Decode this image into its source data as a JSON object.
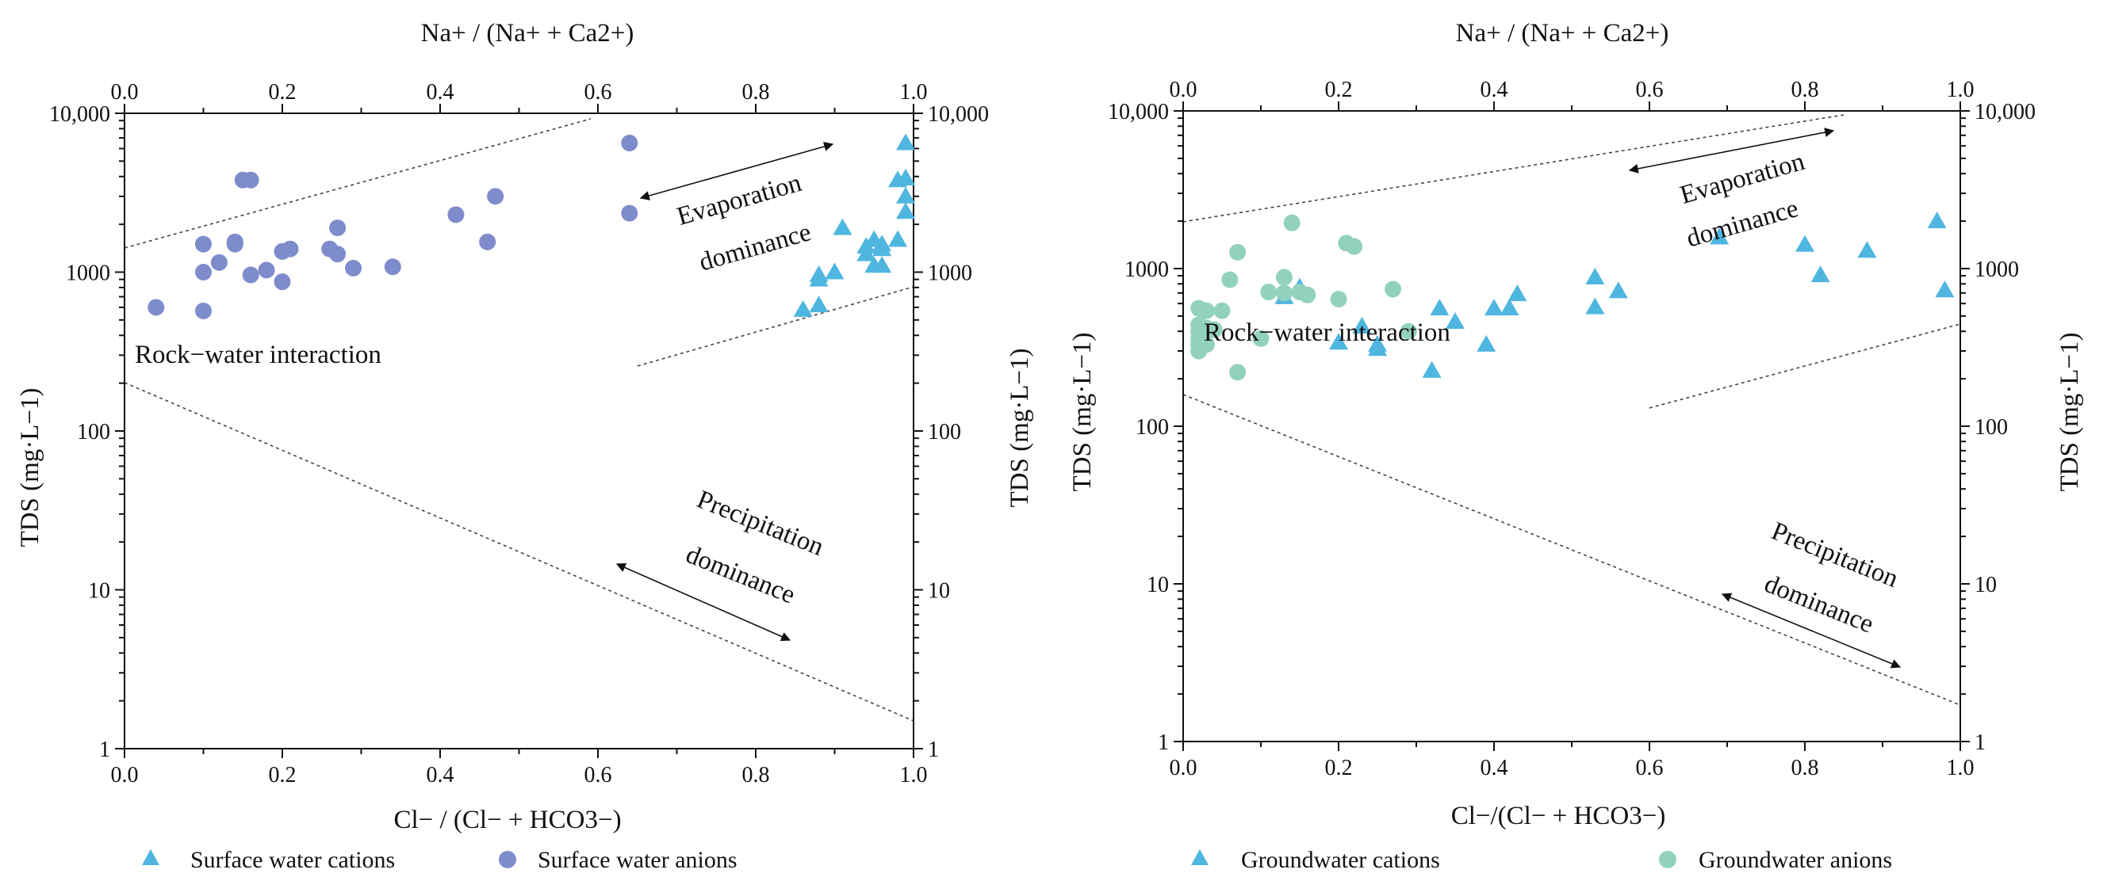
{
  "chart_data": [
    {
      "type": "scatter",
      "title": "",
      "top_axis": {
        "label": "Na+ / (Na+ + Ca2+)",
        "range": [
          0,
          1
        ],
        "ticks": [
          "0.0",
          "0.2",
          "0.4",
          "0.6",
          "0.8",
          "1.0"
        ]
      },
      "bottom_axis": {
        "label": "Cl− / (Cl− + HCO3−)",
        "range": [
          0,
          1
        ],
        "ticks": [
          "0.0",
          "0.2",
          "0.4",
          "0.6",
          "0.8",
          "1.0"
        ]
      },
      "left_axis": {
        "label": "TDS (mg·L−1)",
        "scale": "log",
        "range": [
          1,
          10000
        ],
        "ticks": [
          "1",
          "10",
          "100",
          "1000",
          "10,000"
        ]
      },
      "right_axis": {
        "label": "TDS (mg·L−1)",
        "scale": "log",
        "range": [
          1,
          10000
        ],
        "ticks": [
          "1",
          "10",
          "100",
          "1000",
          "10,000"
        ]
      },
      "annotations": {
        "evap_line1": "Evaporation",
        "evap_line2": "dominance",
        "rock": "Rock−water interaction",
        "precip_line1": "Precipitation",
        "precip_line2": "dominance"
      },
      "legend": {
        "position": "bottom",
        "entries": [
          {
            "label": "Surface water cations",
            "marker": "triangle",
            "color": "#4fb6e0"
          },
          {
            "label": "Surface water anions",
            "marker": "circle",
            "color": "#7f8ccc"
          }
        ]
      },
      "series": [
        {
          "name": "Surface water cations",
          "marker": "triangle",
          "color": "#4fb6e0",
          "axis": "top",
          "points": [
            [
              0.86,
              580
            ],
            [
              0.88,
              620
            ],
            [
              0.88,
              900
            ],
            [
              0.88,
              960
            ],
            [
              0.9,
              1000
            ],
            [
              0.91,
              1900
            ],
            [
              0.94,
              1300
            ],
            [
              0.94,
              1450
            ],
            [
              0.95,
              1100
            ],
            [
              0.95,
              1600
            ],
            [
              0.96,
              1100
            ],
            [
              0.96,
              1400
            ],
            [
              0.96,
              1500
            ],
            [
              0.98,
              1600
            ],
            [
              0.98,
              3800
            ],
            [
              0.99,
              2400
            ],
            [
              0.99,
              3000
            ],
            [
              0.99,
              3900
            ],
            [
              0.99,
              6500
            ]
          ]
        },
        {
          "name": "Surface water anions",
          "marker": "circle",
          "color": "#7f8ccc",
          "axis": "bottom",
          "points": [
            [
              0.04,
              600
            ],
            [
              0.1,
              570
            ],
            [
              0.1,
              1000
            ],
            [
              0.1,
              1500
            ],
            [
              0.12,
              1150
            ],
            [
              0.14,
              1500
            ],
            [
              0.14,
              1550
            ],
            [
              0.15,
              3800
            ],
            [
              0.16,
              3800
            ],
            [
              0.16,
              960
            ],
            [
              0.18,
              1030
            ],
            [
              0.2,
              870
            ],
            [
              0.2,
              1350
            ],
            [
              0.21,
              1400
            ],
            [
              0.26,
              1400
            ],
            [
              0.27,
              1300
            ],
            [
              0.27,
              1900
            ],
            [
              0.29,
              1060
            ],
            [
              0.34,
              1080
            ],
            [
              0.42,
              2300
            ],
            [
              0.46,
              1550
            ],
            [
              0.47,
              3000
            ],
            [
              0.64,
              2350
            ],
            [
              0.64,
              6500
            ]
          ]
        }
      ]
    },
    {
      "type": "scatter",
      "title": "",
      "top_axis": {
        "label": "Na+ / (Na+ + Ca2+)",
        "range": [
          0,
          1
        ],
        "ticks": [
          "0.0",
          "0.2",
          "0.4",
          "0.6",
          "0.8",
          "1.0"
        ]
      },
      "bottom_axis": {
        "label": "Cl−/(Cl− + HCO3−)",
        "range": [
          0,
          1
        ],
        "ticks": [
          "0.0",
          "0.2",
          "0.4",
          "0.6",
          "0.8",
          "1.0"
        ]
      },
      "left_axis": {
        "label": "TDS (mg·L−1)",
        "scale": "log",
        "range": [
          1,
          10000
        ],
        "ticks": [
          "1",
          "10",
          "100",
          "1000",
          "10,000"
        ]
      },
      "right_axis": {
        "label": "TDS (mg·L−1)",
        "scale": "log",
        "range": [
          1,
          10000
        ],
        "ticks": [
          "1",
          "10",
          "100",
          "1000",
          "10,000"
        ]
      },
      "annotations": {
        "evap_line1": "Evaporation",
        "evap_line2": "dominance",
        "rock": "Rock−water interaction",
        "precip_line1": "Precipitation",
        "precip_line2": "dominance"
      },
      "legend": {
        "position": "bottom",
        "entries": [
          {
            "label": "Groundwater cations",
            "marker": "triangle",
            "color": "#4fb6e0"
          },
          {
            "label": "Groundwater anions",
            "marker": "circle",
            "color": "#93d1bf"
          }
        ]
      },
      "series": [
        {
          "name": "Groundwater cations",
          "marker": "triangle",
          "color": "#4fb6e0",
          "axis": "top",
          "points": [
            [
              0.13,
              660
            ],
            [
              0.15,
              760
            ],
            [
              0.2,
              340
            ],
            [
              0.23,
              430
            ],
            [
              0.25,
              310
            ],
            [
              0.25,
              330
            ],
            [
              0.32,
              225
            ],
            [
              0.33,
              560
            ],
            [
              0.35,
              460
            ],
            [
              0.39,
              330
            ],
            [
              0.4,
              560
            ],
            [
              0.42,
              560
            ],
            [
              0.43,
              690
            ],
            [
              0.53,
              570
            ],
            [
              0.53,
              880
            ],
            [
              0.56,
              720
            ],
            [
              0.69,
              1580
            ],
            [
              0.8,
              1420
            ],
            [
              0.82,
              910
            ],
            [
              0.88,
              1300
            ],
            [
              0.97,
              2000
            ],
            [
              0.98,
              730
            ]
          ]
        },
        {
          "name": "Groundwater anions",
          "marker": "circle",
          "color": "#93d1bf",
          "axis": "bottom",
          "points": [
            [
              0.02,
              300
            ],
            [
              0.02,
              330
            ],
            [
              0.02,
              360
            ],
            [
              0.02,
              400
            ],
            [
              0.02,
              440
            ],
            [
              0.02,
              560
            ],
            [
              0.03,
              330
            ],
            [
              0.03,
              420
            ],
            [
              0.03,
              540
            ],
            [
              0.04,
              410
            ],
            [
              0.05,
              540
            ],
            [
              0.06,
              850
            ],
            [
              0.07,
              220
            ],
            [
              0.07,
              1270
            ],
            [
              0.1,
              360
            ],
            [
              0.11,
              710
            ],
            [
              0.13,
              700
            ],
            [
              0.13,
              880
            ],
            [
              0.14,
              1950
            ],
            [
              0.15,
              710
            ],
            [
              0.16,
              680
            ],
            [
              0.2,
              640
            ],
            [
              0.21,
              1450
            ],
            [
              0.22,
              1380
            ],
            [
              0.27,
              740
            ],
            [
              0.29,
              400
            ]
          ]
        }
      ]
    }
  ]
}
